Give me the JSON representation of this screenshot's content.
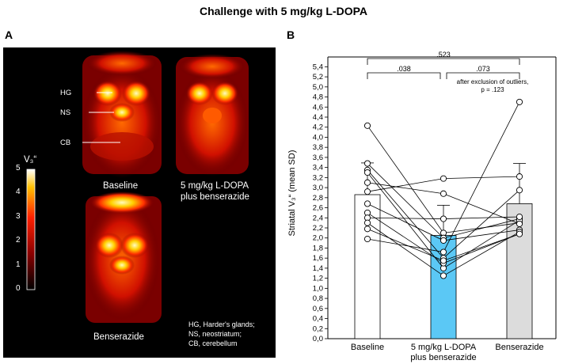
{
  "figure_title": "Challenge with 5 mg/kg L-DOPA",
  "panel_a": {
    "letter": "A",
    "colorbar": {
      "label": "V₃“",
      "ticks": [
        "5",
        "4",
        "3",
        "2",
        "1",
        "0"
      ]
    },
    "scans": [
      {
        "label": "Baseline"
      },
      {
        "label_line1": "5 mg/kg L-DOPA",
        "label_line2": "plus benserazide"
      },
      {
        "label": "Benserazide"
      }
    ],
    "annotations": [
      "HG",
      "NS",
      "CB"
    ],
    "legend_lines": [
      "HG, Harder's glands;",
      "NS, neostriatum;",
      "CB, cerebellum"
    ]
  },
  "panel_b": {
    "letter": "B",
    "ylabel": "Striatal V₃“ (mean   SD)",
    "comparisons": [
      {
        "label": ".523"
      },
      {
        "label": ".038"
      },
      {
        "label": ".073"
      }
    ],
    "note_line1": "after exclusion of outliers,",
    "note_line2": "p = .123",
    "categories": [
      {
        "line1": "Baseline",
        "line2": ""
      },
      {
        "line1": "5 mg/kg L-DOPA",
        "line2": "plus benserazide"
      },
      {
        "line1": "Benserazide",
        "line2": ""
      }
    ]
  },
  "colors": {
    "bar_baseline": "#ffffff",
    "bar_ldopa": "#5bc8f5",
    "bar_benserazide": "#dcdcdc",
    "scan_low": "#8b0000",
    "scan_mid": "#ff3000",
    "scan_high": "#ffff80"
  },
  "chart_data": {
    "type": "bar",
    "ylim": [
      0,
      5.5
    ],
    "yticks": [
      "0,0",
      "0,2",
      "0,4",
      "0,6",
      "0,8",
      "1,0",
      "1,2",
      "1,4",
      "1,6",
      "1,8",
      "2,0",
      "2,2",
      "2,4",
      "2,6",
      "2,8",
      "3,0",
      "3,2",
      "3,4",
      "3,6",
      "3,8",
      "4,0",
      "4,2",
      "4,4",
      "4,6",
      "4,8",
      "5,0",
      "5,2",
      "5,4"
    ],
    "categories": [
      "Baseline",
      "5 mg/kg L-DOPA plus benserazide",
      "Benserazide"
    ],
    "means": [
      2.86,
      2.05,
      2.68
    ],
    "sd": [
      0.63,
      0.6,
      0.8
    ],
    "subjects": [
      [
        4.23,
        2.1,
        2.3
      ],
      [
        3.48,
        2.0,
        2.38
      ],
      [
        3.35,
        1.6,
        2.95
      ],
      [
        3.3,
        1.4,
        2.35
      ],
      [
        3.1,
        2.88,
        2.28
      ],
      [
        2.92,
        3.18,
        3.22
      ],
      [
        2.68,
        1.95,
        2.16
      ],
      [
        2.5,
        1.5,
        2.08
      ],
      [
        2.4,
        2.38,
        2.42
      ],
      [
        2.3,
        1.25,
        2.12
      ],
      [
        2.18,
        1.55,
        2.08
      ],
      [
        1.98,
        1.72,
        4.7
      ]
    ]
  }
}
